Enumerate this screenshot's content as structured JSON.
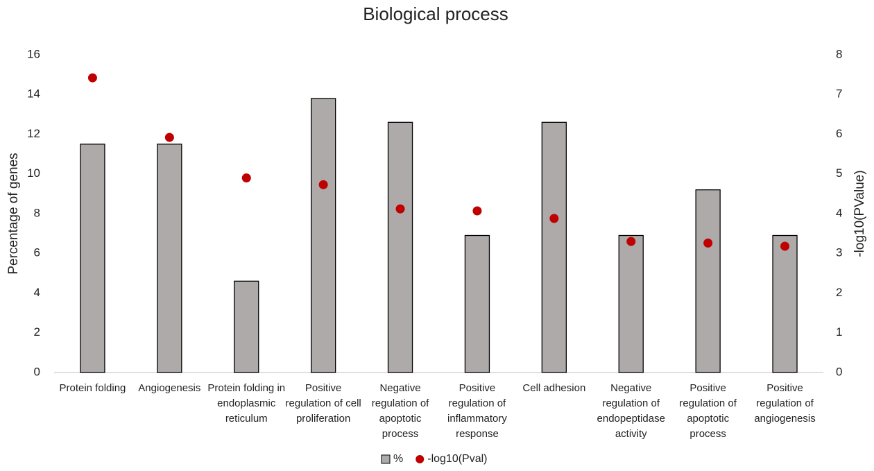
{
  "chart_data": {
    "type": "bar-dot",
    "title": "Biological process",
    "ylabel": "Percentage of genes",
    "y2label": "-log10(PValue)",
    "categories": [
      "Protein folding",
      "Angiogenesis",
      "Protein folding in endoplasmic reticulum",
      "Positive regulation of cell proliferation",
      "Negative regulation of apoptotic process",
      "Positive regulation of inflammatory response",
      "Cell adhesion",
      "Negative regulation of endopeptidase activity",
      "Positive regulation of apoptotic process",
      "Positive regulation of angiogenesis"
    ],
    "series": [
      {
        "name": "%",
        "color": "#aeaaaa",
        "values": [
          11.5,
          11.5,
          4.6,
          13.8,
          12.6,
          6.9,
          12.6,
          6.9,
          9.2,
          6.9
        ]
      },
      {
        "name": "-log10(Pval)",
        "color": "#c00000",
        "axis": "y2",
        "values": [
          7.42,
          5.92,
          4.9,
          4.73,
          4.12,
          4.07,
          3.88,
          3.3,
          3.26,
          3.18
        ]
      }
    ],
    "ylim": [
      0,
      16
    ],
    "yticks": [
      0,
      2,
      4,
      6,
      8,
      10,
      12,
      14,
      16
    ],
    "y2lim": [
      0,
      8
    ],
    "y2ticks": [
      0,
      1,
      2,
      3,
      4,
      5,
      6,
      7,
      8
    ],
    "legend": "bottom"
  }
}
